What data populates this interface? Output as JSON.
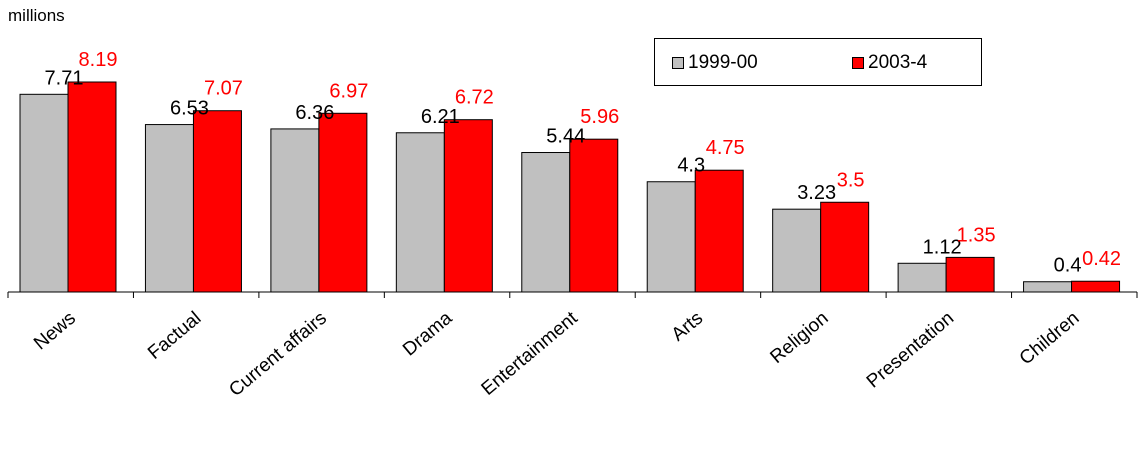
{
  "unit_label": "millions",
  "colors": {
    "series1": "#c0c0c0",
    "series2": "#ff0000",
    "series2_label": "#ff0000",
    "series1_label": "#000000"
  },
  "chart_data": {
    "type": "bar",
    "categories": [
      "News",
      "Factual",
      "Current affairs",
      "Drama",
      "Entertainment",
      "Arts",
      "Religion",
      "Presentation",
      "Children"
    ],
    "series": [
      {
        "name": "1999-00",
        "values": [
          7.71,
          6.53,
          6.36,
          6.21,
          5.44,
          4.3,
          3.23,
          1.12,
          0.4
        ],
        "labels": [
          "7.71",
          "6.53",
          "6.36",
          "6.21",
          "5.44",
          "4.3",
          "3.23",
          "1.12",
          "0.4"
        ]
      },
      {
        "name": "2003-4",
        "values": [
          8.19,
          7.07,
          6.97,
          6.72,
          5.96,
          4.75,
          3.5,
          1.35,
          0.42
        ],
        "labels": [
          "8.19",
          "7.07",
          "6.97",
          "6.72",
          "5.96",
          "4.75",
          "3.5",
          "1.35",
          "0.42"
        ]
      }
    ],
    "ylabel": "millions",
    "ylim": [
      0,
      8.19
    ],
    "legend": "top-right",
    "grid": false
  }
}
